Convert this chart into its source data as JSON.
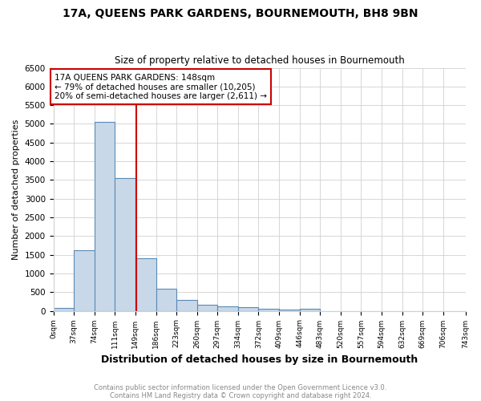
{
  "title": "17A, QUEENS PARK GARDENS, BOURNEMOUTH, BH8 9BN",
  "subtitle": "Size of property relative to detached houses in Bournemouth",
  "xlabel": "Distribution of detached houses by size in Bournemouth",
  "ylabel": "Number of detached properties",
  "footer1": "Contains HM Land Registry data © Crown copyright and database right 2024.",
  "footer2": "Contains public sector information licensed under the Open Government Licence v3.0.",
  "annotation_line1": "17A QUEENS PARK GARDENS: 148sqm",
  "annotation_line2": "← 79% of detached houses are smaller (10,205)",
  "annotation_line3": "20% of semi-detached houses are larger (2,611) →",
  "red_line_x": 149,
  "bin_edges": [
    0,
    37,
    74,
    111,
    148,
    185,
    222,
    259,
    296,
    333,
    370,
    407,
    444,
    481,
    518,
    555,
    592,
    629,
    666,
    703,
    743
  ],
  "tick_labels": [
    "0sqm",
    "37sqm",
    "74sqm",
    "111sqm",
    "149sqm",
    "186sqm",
    "223sqm",
    "260sqm",
    "297sqm",
    "334sqm",
    "372sqm",
    "409sqm",
    "446sqm",
    "483sqm",
    "520sqm",
    "557sqm",
    "594sqm",
    "632sqm",
    "669sqm",
    "706sqm",
    "743sqm"
  ],
  "bar_heights": [
    75,
    1620,
    5050,
    3550,
    1400,
    600,
    300,
    160,
    130,
    100,
    50,
    40,
    60,
    0,
    0,
    0,
    0,
    0,
    0,
    0
  ],
  "bar_color": "#c8d8e8",
  "bar_edgecolor": "#5a8ab5",
  "red_line_color": "#cc0000",
  "annotation_box_edgecolor": "#cc0000",
  "annotation_box_facecolor": "#ffffff",
  "background_color": "#ffffff",
  "grid_color": "#d0d0d0",
  "ylim": [
    0,
    6500
  ],
  "yticks": [
    0,
    500,
    1000,
    1500,
    2000,
    2500,
    3000,
    3500,
    4000,
    4500,
    5000,
    5500,
    6000,
    6500
  ]
}
